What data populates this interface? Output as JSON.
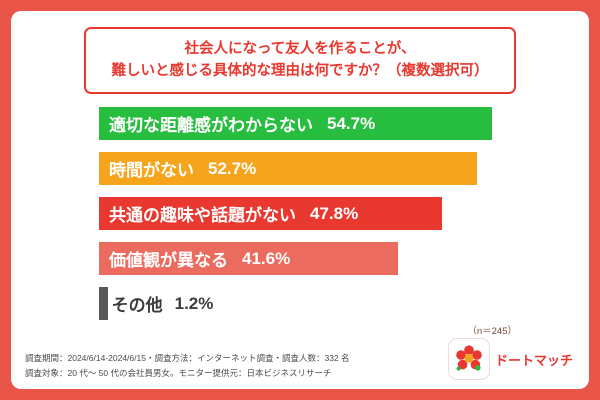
{
  "frame": {
    "background_color": "#ea5549",
    "card_color": "#ffffff"
  },
  "title": {
    "line1": "社会人になって友人を作ることが、",
    "line2": "難しいと感じる具体的な理由は何ですか？（複数選択可）",
    "color": "#e8382f"
  },
  "chart_data": {
    "type": "bar",
    "orientation": "horizontal",
    "title": "社会人になって友人を作ることが、難しいと感じる具体的な理由は何ですか？（複数選択可）",
    "categories": [
      "適切な距離感がわからない",
      "時間がない",
      "共通の趣味や話題がない",
      "価値観が異なる",
      "その他"
    ],
    "values": [
      54.7,
      52.7,
      47.8,
      41.6,
      1.2
    ],
    "value_labels": [
      "54.7%",
      "52.7%",
      "47.8%",
      "41.6%",
      "1.2%"
    ],
    "bar_colors": [
      "#27bd3f",
      "#f6a41c",
      "#e8382f",
      "#eb6b5e",
      "#595757"
    ],
    "label_inside": [
      true,
      true,
      true,
      true,
      false
    ],
    "xlim": [
      0,
      56
    ],
    "grid": false,
    "legend": false,
    "sample_note": "（n＝245）"
  },
  "footer": {
    "line1": "調査期間：2024/6/14-2024/6/15・調査方法：インターネット調査・調査人数：332 名",
    "line2": "調査対象：20 代〜 50 代の会社員男女。モニター提供元：日本ビジネスリサーチ"
  },
  "logo": {
    "text": "ドートマッチ",
    "color": "#e8382f",
    "petal_color": "#e8382f",
    "center_color": "#f6a41c",
    "leaf_color": "#2fb44a"
  }
}
